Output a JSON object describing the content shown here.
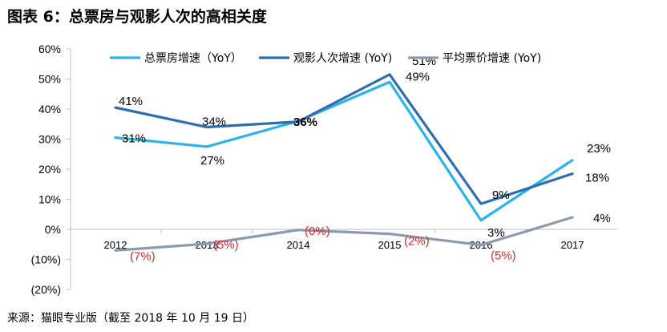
{
  "title": "图表 6：总票房与观影人次的高相关度",
  "source": "来源：猫眼专业版（截至 2018 年 10 月 19 日）",
  "colors": {
    "box_office": "#29B3E8",
    "admissions": "#2E6DB0",
    "ticket_price": "#8A9BB0",
    "negative_label": "#D42A2A",
    "axis": "#BFBFBF"
  },
  "chart_data": {
    "type": "line",
    "categories": [
      "2012",
      "2013",
      "2014",
      "2015",
      "2016",
      "2017"
    ],
    "ylim": [
      -20,
      60
    ],
    "yticks": [
      {
        "value": 60,
        "label": "60%"
      },
      {
        "value": 50,
        "label": "50%"
      },
      {
        "value": 40,
        "label": "40%"
      },
      {
        "value": 30,
        "label": "30%"
      },
      {
        "value": 20,
        "label": "20%"
      },
      {
        "value": 10,
        "label": "10%"
      },
      {
        "value": 0,
        "label": "0%"
      },
      {
        "value": -10,
        "label": "(10%)"
      },
      {
        "value": -20,
        "label": "(20%)"
      }
    ],
    "legend_position": "top",
    "grid": false,
    "series": [
      {
        "name": "总票房增速（YoY）",
        "color": "#29B3E8",
        "values": [
          30.5,
          27.5,
          36,
          49,
          3,
          23
        ],
        "labels": [
          "31%",
          "27%",
          "36%",
          "49%",
          "3%",
          "23%"
        ]
      },
      {
        "name": "观影人次增速 (YoY)",
        "color": "#2E6DB0",
        "values": [
          40.5,
          34,
          35.8,
          51.5,
          8.5,
          18.5
        ],
        "labels": [
          "41%",
          "34%",
          "",
          "51%",
          "9%",
          "18%"
        ]
      },
      {
        "name": "平均票价增速 (YoY)",
        "color": "#8A9BB0",
        "values": [
          -7,
          -4.8,
          -0.2,
          -1.5,
          -5.2,
          4
        ],
        "labels": [
          "(7%)",
          "(5%)",
          "(0%)",
          "(2%)",
          "(5%)",
          "4%"
        ]
      }
    ]
  }
}
